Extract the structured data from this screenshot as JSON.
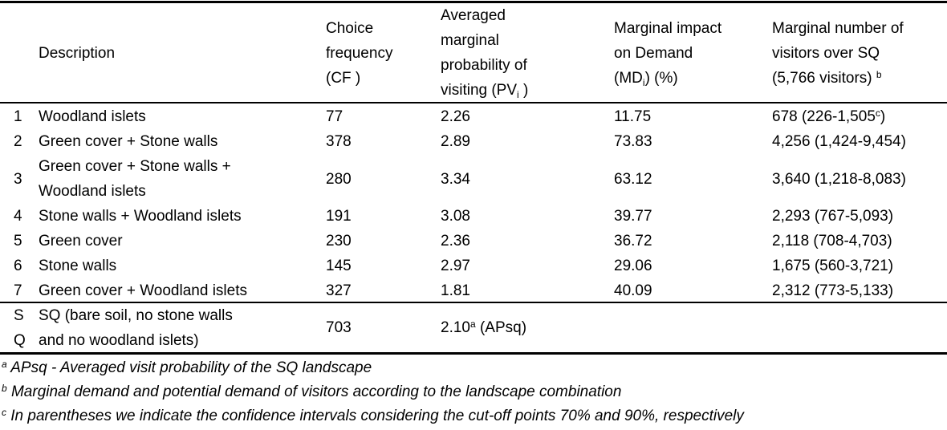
{
  "header": {
    "description": "Description",
    "cf": [
      "Choice",
      "frequency",
      "(CF )"
    ],
    "pv": [
      "Averaged",
      "marginal",
      "probability of",
      "visiting (PV",
      "i",
      " )"
    ],
    "md": [
      "Marginal impact",
      "on Demand",
      "(MD",
      "i",
      ") (%)"
    ],
    "visitors": [
      "Marginal number of",
      "visitors over SQ",
      "(5,766 visitors) ",
      "b"
    ]
  },
  "rows": [
    {
      "num": "1",
      "desc": [
        "Woodland islets"
      ],
      "cf": "77",
      "pv": "2.26",
      "md": "11.75",
      "visitors": "678 (226-1,505",
      "visitors_sup": "c",
      "visitors_end": ")"
    },
    {
      "num": "2",
      "desc": [
        "Green cover + Stone walls"
      ],
      "cf": "378",
      "pv": "2.89",
      "md": "73.83",
      "visitors": "4,256 (1,424-9,454)"
    },
    {
      "num": "3",
      "desc": [
        "Green cover + Stone walls +",
        "Woodland islets"
      ],
      "cf": "280",
      "pv": "3.34",
      "md": "63.12",
      "visitors": "3,640 (1,218-8,083)"
    },
    {
      "num": "4",
      "desc": [
        "Stone walls + Woodland islets"
      ],
      "cf": "191",
      "pv": "3.08",
      "md": "39.77",
      "visitors": "2,293 (767-5,093)"
    },
    {
      "num": "5",
      "desc": [
        "Green cover"
      ],
      "cf": "230",
      "pv": "2.36",
      "md": "36.72",
      "visitors": "2,118 (708-4,703)"
    },
    {
      "num": "6",
      "desc": [
        "Stone walls"
      ],
      "cf": "145",
      "pv": "2.97",
      "md": "29.06",
      "visitors": "1,675 (560-3,721)"
    },
    {
      "num": "7",
      "desc": [
        "Green cover + Woodland islets"
      ],
      "cf": "327",
      "pv": "1.81",
      "md": "40.09",
      "visitors": "2,312 (773-5,133)"
    }
  ],
  "sq_row": {
    "num": [
      "S",
      "Q"
    ],
    "desc": [
      "SQ (bare soil, no stone walls",
      "and no woodland islets)"
    ],
    "cf": "703",
    "pv": "2.10",
    "pv_sup": "a",
    "pv_end": " (APsq)"
  },
  "footnotes": [
    {
      "mark": "a",
      "text": " APsq - Averaged visit probability of the SQ landscape"
    },
    {
      "mark": "b",
      "text": " Marginal demand and potential demand of visitors according to the landscape combination"
    },
    {
      "mark": "c",
      "text": " In parentheses we indicate the confidence intervals considering the cut-off points 70% and 90%, respectively"
    }
  ]
}
